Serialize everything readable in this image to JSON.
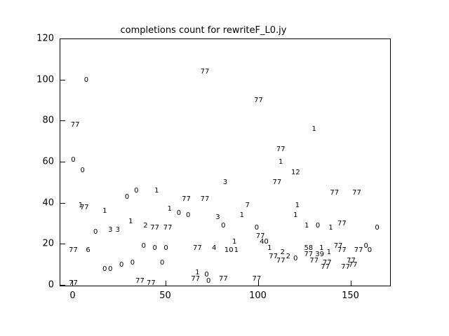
{
  "chart_data": {
    "type": "scatter",
    "title": "completions count for rewriteF_L0.jy",
    "xlabel": "",
    "ylabel": "",
    "marker": "text-label",
    "grid": false,
    "legend": "none",
    "xlim": [
      -7,
      171
    ],
    "ylim": [
      0,
      120
    ],
    "x_ticks": [
      0,
      50,
      100,
      150
    ],
    "y_ticks": [
      0,
      20,
      40,
      60,
      80,
      100,
      120
    ],
    "points": [
      {
        "x": 7,
        "y": 100,
        "label": "0"
      },
      {
        "x": 71,
        "y": 104,
        "label": "77"
      },
      {
        "x": 100,
        "y": 90,
        "label": "77"
      },
      {
        "x": 1,
        "y": 78,
        "label": "77"
      },
      {
        "x": 130,
        "y": 76,
        "label": "1"
      },
      {
        "x": 112,
        "y": 66,
        "label": "77"
      },
      {
        "x": 0,
        "y": 61,
        "label": "0"
      },
      {
        "x": 112,
        "y": 60,
        "label": "1"
      },
      {
        "x": 5,
        "y": 56,
        "label": "0"
      },
      {
        "x": 120,
        "y": 55,
        "label": "12"
      },
      {
        "x": 110,
        "y": 50,
        "label": "77"
      },
      {
        "x": 82,
        "y": 50,
        "label": "3"
      },
      {
        "x": 34,
        "y": 46,
        "label": "0"
      },
      {
        "x": 141,
        "y": 45,
        "label": "77"
      },
      {
        "x": 153,
        "y": 45,
        "label": "77"
      },
      {
        "x": 45,
        "y": 46,
        "label": "1"
      },
      {
        "x": 29,
        "y": 43,
        "label": "0"
      },
      {
        "x": 61,
        "y": 42,
        "label": "77"
      },
      {
        "x": 71,
        "y": 42,
        "label": "77"
      },
      {
        "x": 4,
        "y": 39,
        "label": "1"
      },
      {
        "x": 6,
        "y": 38,
        "label": "77"
      },
      {
        "x": 94,
        "y": 39,
        "label": "7"
      },
      {
        "x": 121,
        "y": 39,
        "label": "1"
      },
      {
        "x": 17,
        "y": 36,
        "label": "1"
      },
      {
        "x": 52,
        "y": 37,
        "label": "1"
      },
      {
        "x": 91,
        "y": 34,
        "label": "1"
      },
      {
        "x": 57,
        "y": 35,
        "label": "0"
      },
      {
        "x": 62,
        "y": 34,
        "label": "0"
      },
      {
        "x": 120,
        "y": 34,
        "label": "1"
      },
      {
        "x": 78,
        "y": 33,
        "label": "3"
      },
      {
        "x": 31,
        "y": 31,
        "label": "1"
      },
      {
        "x": 81,
        "y": 29,
        "label": "0"
      },
      {
        "x": 164,
        "y": 28,
        "label": "0"
      },
      {
        "x": 39,
        "y": 29,
        "label": "2"
      },
      {
        "x": 44,
        "y": 28,
        "label": "77"
      },
      {
        "x": 51,
        "y": 28,
        "label": "77"
      },
      {
        "x": 20,
        "y": 27,
        "label": "3"
      },
      {
        "x": 24,
        "y": 27,
        "label": "3"
      },
      {
        "x": 126,
        "y": 29,
        "label": "1"
      },
      {
        "x": 132,
        "y": 29,
        "label": "0"
      },
      {
        "x": 139,
        "y": 28,
        "label": "1"
      },
      {
        "x": 145,
        "y": 30,
        "label": "77"
      },
      {
        "x": 12,
        "y": 26,
        "label": "0"
      },
      {
        "x": 99,
        "y": 28,
        "label": "0"
      },
      {
        "x": 101,
        "y": 24,
        "label": "77"
      },
      {
        "x": 87,
        "y": 21,
        "label": "1"
      },
      {
        "x": 103,
        "y": 21,
        "label": "40"
      },
      {
        "x": 67,
        "y": 18,
        "label": "77"
      },
      {
        "x": 84,
        "y": 17,
        "label": "10"
      },
      {
        "x": 88,
        "y": 17,
        "label": "1"
      },
      {
        "x": 76,
        "y": 18,
        "label": "4"
      },
      {
        "x": 106,
        "y": 18,
        "label": "1"
      },
      {
        "x": 0,
        "y": 17,
        "label": "77"
      },
      {
        "x": 8,
        "y": 17,
        "label": "6"
      },
      {
        "x": 38,
        "y": 19,
        "label": "0"
      },
      {
        "x": 44,
        "y": 18,
        "label": "0"
      },
      {
        "x": 50,
        "y": 18,
        "label": "0"
      },
      {
        "x": 127,
        "y": 18,
        "label": "58"
      },
      {
        "x": 134,
        "y": 18,
        "label": "1"
      },
      {
        "x": 143,
        "y": 19,
        "label": "77"
      },
      {
        "x": 158,
        "y": 19,
        "label": "0"
      },
      {
        "x": 113,
        "y": 16,
        "label": "2"
      },
      {
        "x": 108,
        "y": 14,
        "label": "77"
      },
      {
        "x": 116,
        "y": 14,
        "label": "2"
      },
      {
        "x": 127,
        "y": 15,
        "label": "77"
      },
      {
        "x": 133,
        "y": 15,
        "label": "39"
      },
      {
        "x": 138,
        "y": 16,
        "label": "1"
      },
      {
        "x": 145,
        "y": 17,
        "label": "77"
      },
      {
        "x": 154,
        "y": 17,
        "label": "77"
      },
      {
        "x": 160,
        "y": 17,
        "label": "0"
      },
      {
        "x": 112,
        "y": 12,
        "label": "77"
      },
      {
        "x": 120,
        "y": 13,
        "label": "0"
      },
      {
        "x": 130,
        "y": 12,
        "label": "77"
      },
      {
        "x": 137,
        "y": 11,
        "label": "77"
      },
      {
        "x": 150,
        "y": 12,
        "label": "77"
      },
      {
        "x": 26,
        "y": 10,
        "label": "0"
      },
      {
        "x": 32,
        "y": 11,
        "label": "0"
      },
      {
        "x": 48,
        "y": 11,
        "label": "0"
      },
      {
        "x": 17,
        "y": 8,
        "label": "0"
      },
      {
        "x": 20,
        "y": 8,
        "label": "0"
      },
      {
        "x": 136,
        "y": 9,
        "label": "77"
      },
      {
        "x": 147,
        "y": 9,
        "label": "77"
      },
      {
        "x": 151,
        "y": 10,
        "label": "77"
      },
      {
        "x": 67,
        "y": 6,
        "label": "1"
      },
      {
        "x": 72,
        "y": 5,
        "label": "0"
      },
      {
        "x": 66,
        "y": 3,
        "label": "77"
      },
      {
        "x": 73,
        "y": 2,
        "label": "0"
      },
      {
        "x": 81,
        "y": 3,
        "label": "77"
      },
      {
        "x": 99,
        "y": 3,
        "label": "77"
      },
      {
        "x": 36,
        "y": 2,
        "label": "77"
      },
      {
        "x": 42,
        "y": 1,
        "label": "77"
      },
      {
        "x": 0,
        "y": 1,
        "label": "77"
      }
    ],
    "colors": {
      "background": "#ffffff",
      "axis": "#000000",
      "text": "#000000"
    }
  }
}
